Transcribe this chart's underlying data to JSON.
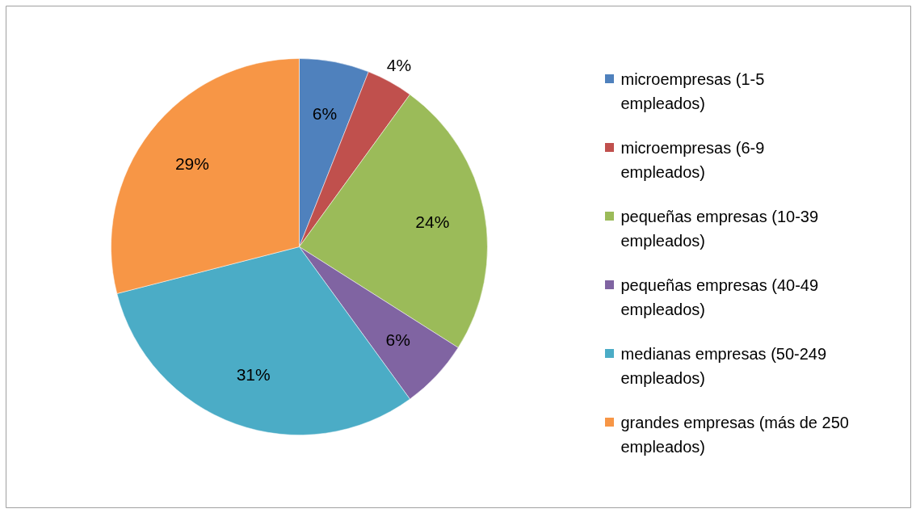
{
  "chart_data": {
    "type": "pie",
    "categories": [
      "microempresas (1-5 empleados)",
      "microempresas (6-9 empleados)",
      "pequeñas empresas (10-39 empleados)",
      "pequeñas empresas (40-49 empleados)",
      "medianas empresas (50-249 empleados)",
      "grandes empresas (más de 250 empleados)"
    ],
    "values": [
      6,
      4,
      24,
      6,
      31,
      29
    ],
    "colors": [
      "#4f81bd",
      "#c0504d",
      "#9bbb59",
      "#8064a2",
      "#4bacc6",
      "#f79646"
    ],
    "value_labels": [
      "6%",
      "4%",
      "24%",
      "6%",
      "31%",
      "29%"
    ],
    "legend": "right"
  }
}
